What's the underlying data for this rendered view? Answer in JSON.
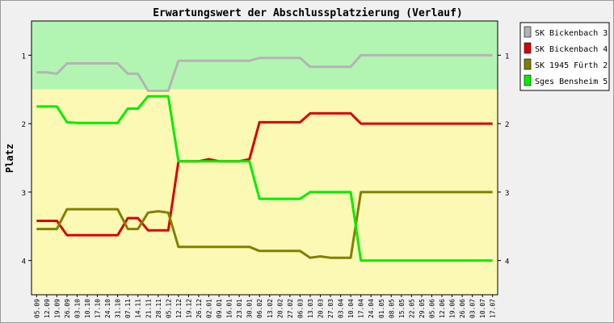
{
  "chart_data": {
    "type": "line",
    "title": "Erwartungswert der Abschlussplatzierung (Verlauf)",
    "ylabel": "Platz",
    "xlabel": "",
    "ylim": [
      4.5,
      0.5
    ],
    "y_inverted": true,
    "yticks": [
      1,
      2,
      3,
      4
    ],
    "ytick_labels": [
      "1",
      "2",
      "3",
      "4"
    ],
    "bands": [
      {
        "from": 0.5,
        "to": 1.5,
        "color": "#b2f5b2"
      },
      {
        "from": 1.5,
        "to": 4.5,
        "color": "#fcf9b4"
      }
    ],
    "grid": false,
    "legend_position": "right",
    "x": [
      "05.09",
      "12.09",
      "19.09",
      "26.09",
      "03.10",
      "10.10",
      "17.10",
      "24.10",
      "31.10",
      "07.11",
      "14.11",
      "21.11",
      "28.11",
      "05.12",
      "12.12",
      "19.12",
      "26.12",
      "02.01",
      "09.01",
      "16.01",
      "23.01",
      "30.01",
      "06.02",
      "13.02",
      "20.02",
      "27.02",
      "06.03",
      "13.03",
      "20.03",
      "27.03",
      "03.04",
      "10.04",
      "17.04",
      "24.04",
      "01.05",
      "08.05",
      "15.05",
      "22.05",
      "29.05",
      "05.06",
      "12.06",
      "19.06",
      "26.06",
      "03.07",
      "10.07",
      "17.07"
    ],
    "series": [
      {
        "name": "SK Bickenbach 3",
        "color": "#b4b4b4",
        "values": [
          1.25,
          1.25,
          1.27,
          1.12,
          1.12,
          1.12,
          1.12,
          1.12,
          1.12,
          1.27,
          1.27,
          1.52,
          1.52,
          1.52,
          1.08,
          1.08,
          1.08,
          1.08,
          1.08,
          1.08,
          1.08,
          1.08,
          1.04,
          1.04,
          1.04,
          1.04,
          1.04,
          1.17,
          1.17,
          1.17,
          1.17,
          1.17,
          1.0,
          1.0,
          1.0,
          1.0,
          1.0,
          1.0,
          1.0,
          1.0,
          1.0,
          1.0,
          1.0,
          1.0,
          1.0,
          1.0
        ]
      },
      {
        "name": "SK Bickenbach 4",
        "color": "#dd0000",
        "values": [
          3.42,
          3.42,
          3.42,
          3.63,
          3.63,
          3.63,
          3.63,
          3.63,
          3.63,
          3.38,
          3.38,
          3.56,
          3.56,
          3.56,
          2.55,
          2.55,
          2.55,
          2.52,
          2.55,
          2.55,
          2.55,
          2.52,
          1.98,
          1.98,
          1.98,
          1.98,
          1.98,
          1.85,
          1.85,
          1.85,
          1.85,
          1.85,
          2.0,
          2.0,
          2.0,
          2.0,
          2.0,
          2.0,
          2.0,
          2.0,
          2.0,
          2.0,
          2.0,
          2.0,
          2.0,
          2.0
        ]
      },
      {
        "name": "SK 1945 Fürth 2",
        "color": "#808000",
        "values": [
          3.54,
          3.54,
          3.54,
          3.25,
          3.25,
          3.25,
          3.25,
          3.25,
          3.25,
          3.54,
          3.54,
          3.3,
          3.28,
          3.3,
          3.8,
          3.8,
          3.8,
          3.8,
          3.8,
          3.8,
          3.8,
          3.8,
          3.86,
          3.86,
          3.86,
          3.86,
          3.86,
          3.96,
          3.94,
          3.96,
          3.96,
          3.96,
          3.0,
          3.0,
          3.0,
          3.0,
          3.0,
          3.0,
          3.0,
          3.0,
          3.0,
          3.0,
          3.0,
          3.0,
          3.0,
          3.0
        ]
      },
      {
        "name": "Sges Bensheim 5",
        "color": "#00ee00",
        "values": [
          1.75,
          1.75,
          1.75,
          1.98,
          1.99,
          1.99,
          1.99,
          1.99,
          1.99,
          1.78,
          1.78,
          1.6,
          1.6,
          1.6,
          2.55,
          2.55,
          2.55,
          2.55,
          2.55,
          2.55,
          2.55,
          2.55,
          3.1,
          3.1,
          3.1,
          3.1,
          3.1,
          3.0,
          3.0,
          3.0,
          3.0,
          3.0,
          4.0,
          4.0,
          4.0,
          4.0,
          4.0,
          4.0,
          4.0,
          4.0,
          4.0,
          4.0,
          4.0,
          4.0,
          4.0,
          4.0
        ]
      }
    ]
  }
}
